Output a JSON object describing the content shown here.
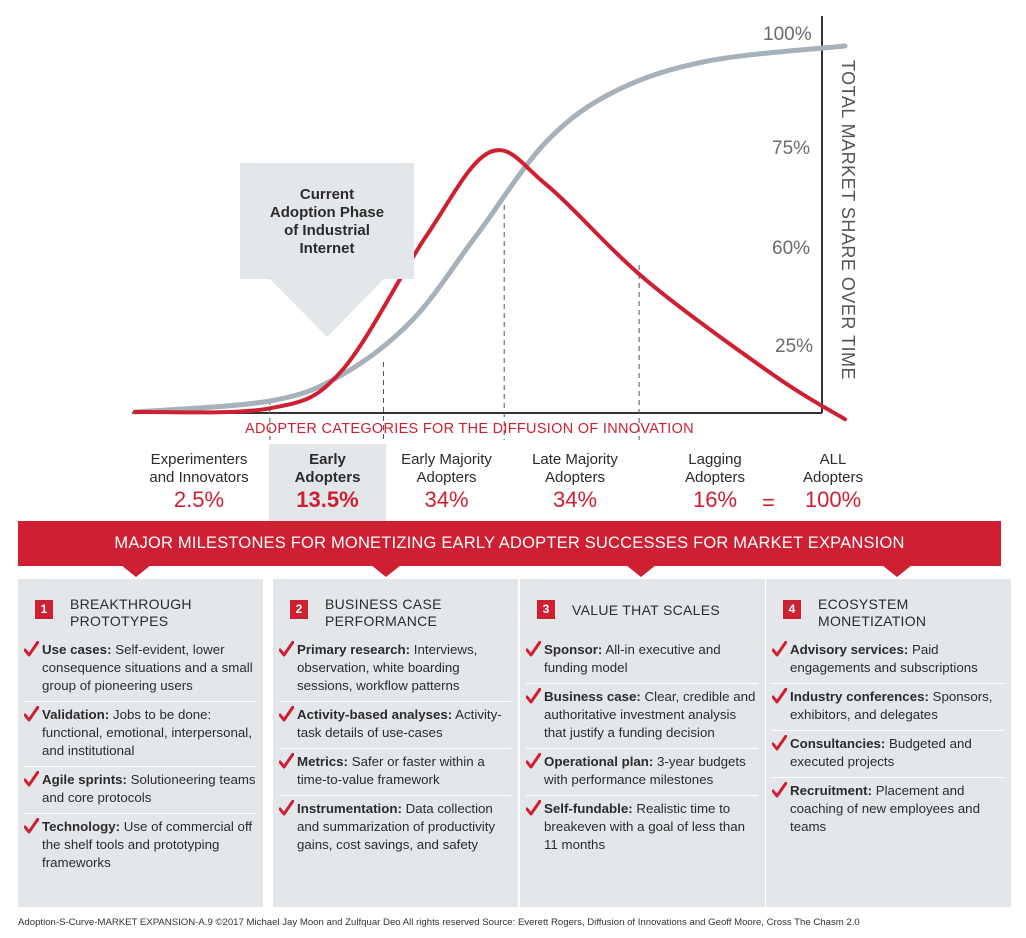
{
  "chart_data": {
    "type": "line",
    "xlabel": "",
    "ylabel": "TOTAL MARKET SHARE OVER TIME",
    "y_tick_labels": [
      "100%",
      "75%",
      "60%",
      "25%"
    ],
    "series": [
      {
        "name": "",
        "color": "#a7b1ba",
        "role": "cumulative adoption (S-curve)",
        "points": [
          [
            0.0,
            0.0
          ],
          [
            0.19,
            0.03
          ],
          [
            0.29,
            0.1
          ],
          [
            0.39,
            0.25
          ],
          [
            0.48,
            0.48
          ],
          [
            0.58,
            0.74
          ],
          [
            0.68,
            0.88
          ],
          [
            0.81,
            0.96
          ],
          [
            1.0,
            1.0
          ]
        ]
      },
      {
        "name": "",
        "color": "#cf1f33",
        "role": "adopter distribution (bell curve)",
        "points": [
          [
            0.0,
            0.0
          ],
          [
            0.19,
            0.01
          ],
          [
            0.29,
            0.11
          ],
          [
            0.41,
            0.48
          ],
          [
            0.5,
            0.71
          ],
          [
            0.58,
            0.62
          ],
          [
            0.72,
            0.36
          ],
          [
            0.9,
            0.1
          ],
          [
            1.0,
            -0.02
          ]
        ]
      }
    ],
    "category_dividers_x": [
      0.19,
      0.35,
      0.52,
      0.71
    ]
  },
  "callout": {
    "line1": "Current",
    "line2": "Adoption Phase",
    "line3": "of Industrial",
    "line4": "Internet"
  },
  "adopter_categories_title": "ADOPTER CATEGORIES FOR THE DIFFUSION OF INNOVATION",
  "categories": [
    {
      "line1": "Experimenters",
      "line2": "and Innovators",
      "value": "2.5%"
    },
    {
      "line1": "Early",
      "line2": "Adopters",
      "value": "13.5%"
    },
    {
      "line1": "Early Majority",
      "line2": "Adopters",
      "value": "34%"
    },
    {
      "line1": "Late Majority",
      "line2": "Adopters",
      "value": "34%"
    },
    {
      "line1": "Lagging",
      "line2": "Adopters",
      "value": "16%"
    },
    {
      "line1": "ALL",
      "line2": "Adopters",
      "value": "100%"
    }
  ],
  "equals": "=",
  "banner": "MAJOR MILESTONES FOR MONETIZING EARLY ADOPTER SUCCESSES FOR MARKET EXPANSION",
  "panels": [
    {
      "number": "1",
      "title1": "BREAKTHROUGH",
      "title2": "PROTOTYPES",
      "items": [
        {
          "label": "Use cases:",
          "text": " Self-evident, lower consequence situations and a small group of pioneering users"
        },
        {
          "label": "Validation:",
          "text": " Jobs to be done: functional, emotional, interpersonal, and institutional"
        },
        {
          "label": "Agile sprints:",
          "text": " Solutioneering teams and core protocols"
        },
        {
          "label": "Technology:",
          "text": " Use of commercial off the shelf tools and prototyping frameworks"
        }
      ]
    },
    {
      "number": "2",
      "title1": "BUSINESS CASE",
      "title2": "PERFORMANCE",
      "items": [
        {
          "label": "Primary research:",
          "text": " Interviews, observation, white boarding sessions, workflow patterns"
        },
        {
          "label": "Activity-based analyses:",
          "text": " Activity-task details of use-cases"
        },
        {
          "label": "Metrics:",
          "text": " Safer or faster within a time-to-value framework"
        },
        {
          "label": "Instrumentation:",
          "text": " Data collection and summarization of productivity gains, cost savings, and safety"
        }
      ]
    },
    {
      "number": "3",
      "title1": "VALUE THAT SCALES",
      "title2": "",
      "items": [
        {
          "label": "Sponsor:",
          "text": " All-in executive and funding model"
        },
        {
          "label": "Business case:",
          "text": " Clear, credible and authoritative investment analysis that justify a funding decision"
        },
        {
          "label": "Operational plan:",
          "text": " 3-year budgets with performance milestones"
        },
        {
          "label": "Self-fundable:",
          "text": " Realistic time to breakeven with a goal of less than 11 months"
        }
      ]
    },
    {
      "number": "4",
      "title1": "ECOSYSTEM",
      "title2": "MONETIZATION",
      "items": [
        {
          "label": "Advisory services:",
          "text": " Paid engagements and subscriptions"
        },
        {
          "label": "Industry conferences:",
          "text": " Sponsors, exhibitors, and delegates"
        },
        {
          "label": "Consultancies:",
          "text": " Budgeted and executed projects"
        },
        {
          "label": "Recruitment:",
          "text": " Placement and coaching of new employees and teams"
        }
      ]
    }
  ],
  "footer": "Adoption-S-Curve-MARKET EXPANSION-A.9 ©2017 Michael Jay Moon and Zulfquar Deo All rights reserved Source: Everett Rogers, Diffusion of Innovations and Geoff Moore, Cross The Chasm 2.0",
  "colors": {
    "accent": "#cf1f33",
    "panel": "#e4e7ea",
    "s_curve": "#a7b1ba"
  }
}
